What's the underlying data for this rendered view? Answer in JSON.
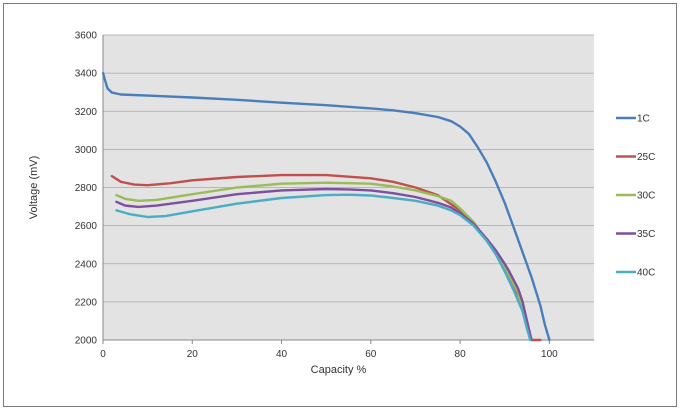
{
  "chart_data": {
    "type": "line",
    "title": "",
    "xlabel": "Capacity %",
    "ylabel": "Voltage (mV)",
    "xlim": [
      0,
      110
    ],
    "ylim": [
      2000,
      3600
    ],
    "x_ticks": [
      "0",
      "20",
      "40",
      "60",
      "80",
      "100"
    ],
    "y_ticks": [
      "2000",
      "2200",
      "2400",
      "2600",
      "2800",
      "3000",
      "3200",
      "3400",
      "3600"
    ],
    "grid": true,
    "legend_position": "right",
    "series": [
      {
        "name": "1C",
        "color": "#4a7ebb",
        "points": [
          [
            0,
            3400
          ],
          [
            0.5,
            3360
          ],
          [
            1,
            3320
          ],
          [
            2,
            3298
          ],
          [
            4,
            3288
          ],
          [
            10,
            3282
          ],
          [
            20,
            3272
          ],
          [
            30,
            3260
          ],
          [
            40,
            3245
          ],
          [
            50,
            3232
          ],
          [
            60,
            3215
          ],
          [
            65,
            3205
          ],
          [
            70,
            3190
          ],
          [
            75,
            3170
          ],
          [
            78,
            3148
          ],
          [
            80,
            3120
          ],
          [
            82,
            3080
          ],
          [
            84,
            3010
          ],
          [
            86,
            2930
          ],
          [
            88,
            2830
          ],
          [
            90,
            2720
          ],
          [
            92,
            2590
          ],
          [
            94,
            2460
          ],
          [
            96,
            2330
          ],
          [
            98,
            2180
          ],
          [
            99,
            2080
          ],
          [
            100,
            2000
          ]
        ]
      },
      {
        "name": "25C",
        "color": "#c0504d",
        "points": [
          [
            2,
            2860
          ],
          [
            4,
            2830
          ],
          [
            7,
            2815
          ],
          [
            10,
            2812
          ],
          [
            15,
            2822
          ],
          [
            20,
            2838
          ],
          [
            30,
            2855
          ],
          [
            40,
            2865
          ],
          [
            50,
            2865
          ],
          [
            60,
            2848
          ],
          [
            65,
            2830
          ],
          [
            70,
            2800
          ],
          [
            75,
            2760
          ],
          [
            80,
            2680
          ],
          [
            84,
            2580
          ],
          [
            86,
            2520
          ],
          [
            88,
            2450
          ],
          [
            90,
            2380
          ],
          [
            92,
            2290
          ],
          [
            94,
            2180
          ],
          [
            95,
            2090
          ],
          [
            96,
            2000
          ],
          [
            98,
            2000
          ]
        ]
      },
      {
        "name": "30C",
        "color": "#9bbb59",
        "points": [
          [
            3,
            2760
          ],
          [
            5,
            2740
          ],
          [
            8,
            2730
          ],
          [
            12,
            2735
          ],
          [
            20,
            2765
          ],
          [
            30,
            2800
          ],
          [
            40,
            2820
          ],
          [
            50,
            2825
          ],
          [
            60,
            2820
          ],
          [
            65,
            2805
          ],
          [
            70,
            2785
          ],
          [
            75,
            2755
          ],
          [
            78,
            2730
          ],
          [
            80,
            2690
          ],
          [
            83,
            2620
          ],
          [
            86,
            2520
          ],
          [
            89,
            2420
          ],
          [
            91,
            2340
          ],
          [
            93,
            2250
          ],
          [
            94,
            2150
          ],
          [
            95,
            2060
          ],
          [
            96,
            2000
          ]
        ]
      },
      {
        "name": "35C",
        "color": "#7e4f9e",
        "points": [
          [
            3,
            2725
          ],
          [
            5,
            2705
          ],
          [
            8,
            2698
          ],
          [
            12,
            2705
          ],
          [
            20,
            2730
          ],
          [
            30,
            2765
          ],
          [
            40,
            2785
          ],
          [
            50,
            2792
          ],
          [
            55,
            2790
          ],
          [
            60,
            2785
          ],
          [
            65,
            2770
          ],
          [
            70,
            2750
          ],
          [
            75,
            2720
          ],
          [
            78,
            2695
          ],
          [
            80,
            2665
          ],
          [
            83,
            2610
          ],
          [
            86,
            2530
          ],
          [
            88,
            2470
          ],
          [
            90,
            2400
          ],
          [
            91,
            2360
          ],
          [
            93,
            2270
          ],
          [
            94,
            2200
          ],
          [
            95,
            2100
          ],
          [
            96,
            2000
          ]
        ]
      },
      {
        "name": "40C",
        "color": "#4bacc6",
        "points": [
          [
            3,
            2680
          ],
          [
            6,
            2660
          ],
          [
            10,
            2645
          ],
          [
            14,
            2650
          ],
          [
            20,
            2675
          ],
          [
            30,
            2715
          ],
          [
            40,
            2745
          ],
          [
            50,
            2760
          ],
          [
            55,
            2762
          ],
          [
            60,
            2758
          ],
          [
            65,
            2745
          ],
          [
            70,
            2730
          ],
          [
            75,
            2705
          ],
          [
            78,
            2680
          ],
          [
            80,
            2655
          ],
          [
            83,
            2600
          ],
          [
            86,
            2520
          ],
          [
            88,
            2450
          ],
          [
            90,
            2360
          ],
          [
            92,
            2260
          ],
          [
            94,
            2150
          ],
          [
            95,
            2060
          ],
          [
            95.7,
            2000
          ]
        ]
      }
    ]
  }
}
